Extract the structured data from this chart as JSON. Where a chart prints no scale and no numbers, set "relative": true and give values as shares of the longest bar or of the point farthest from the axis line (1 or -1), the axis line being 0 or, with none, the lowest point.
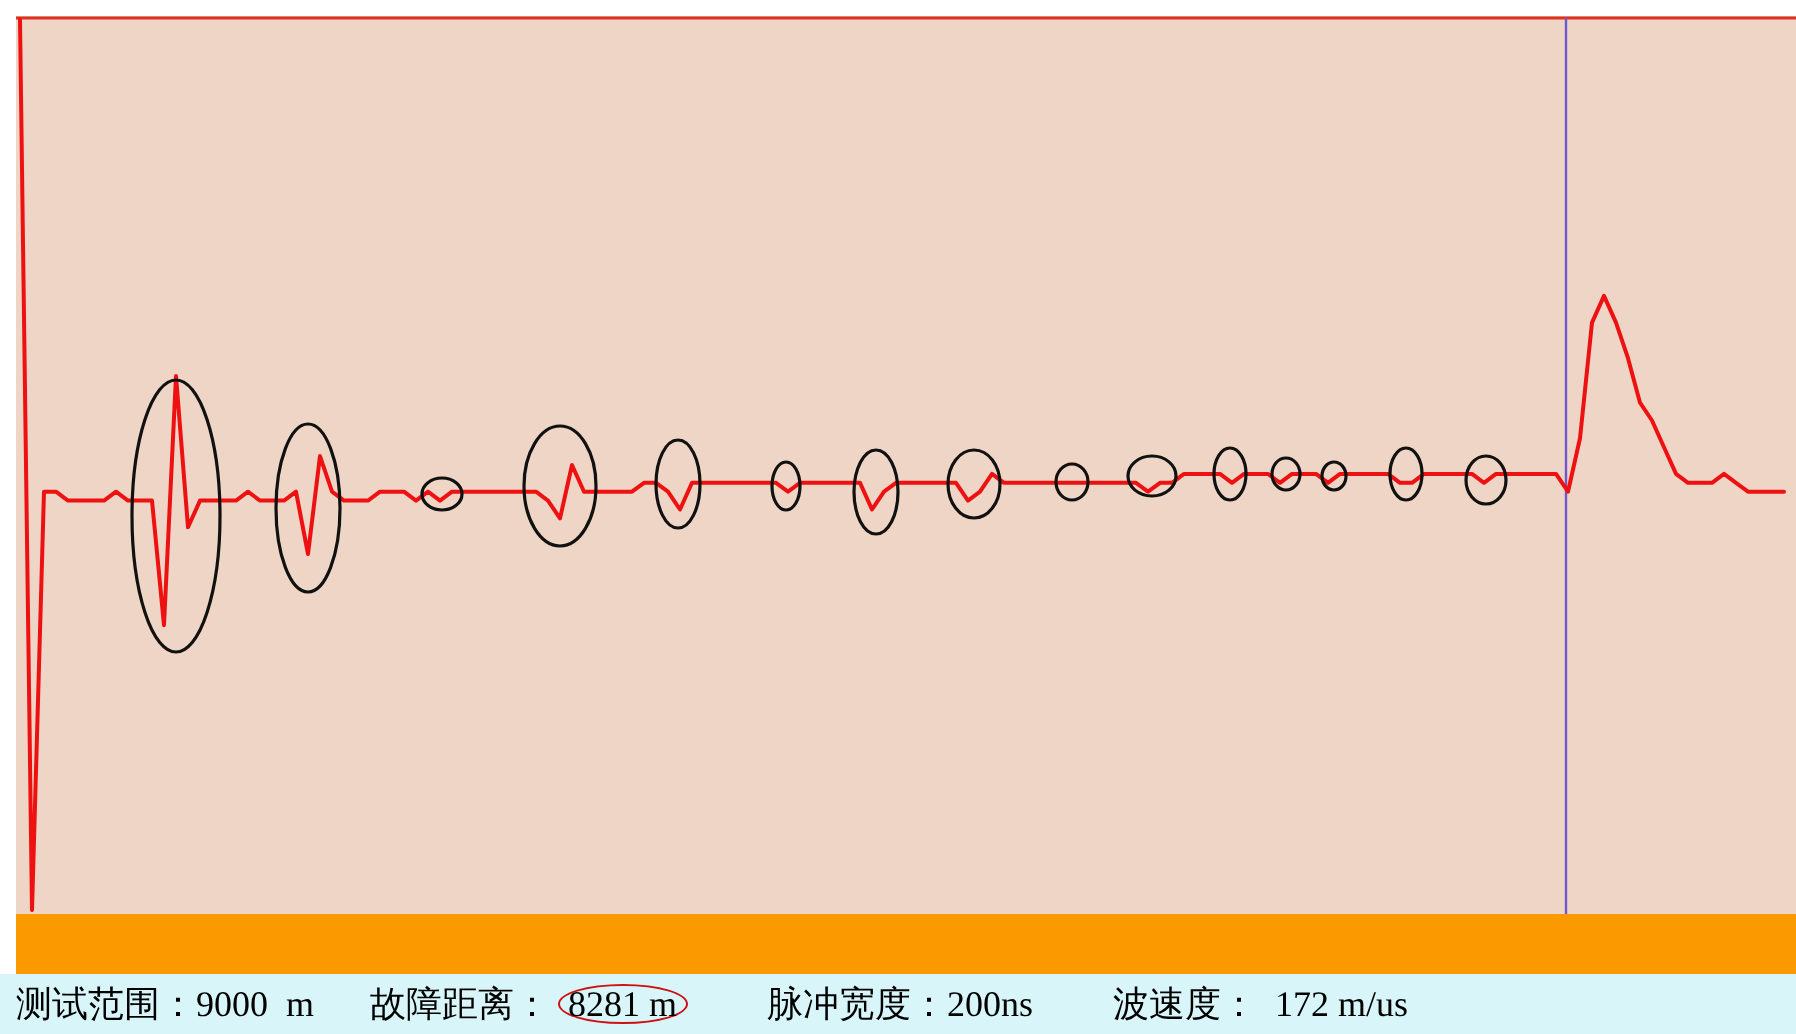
{
  "chart_data": {
    "type": "line",
    "relative": true,
    "categories": [
      null,
      null,
      null,
      null,
      null,
      null,
      null,
      null,
      null,
      null,
      null,
      null,
      null,
      null,
      null,
      null,
      null,
      null,
      null,
      null,
      null,
      null,
      null,
      null,
      null,
      null,
      null,
      null,
      null,
      null,
      null,
      null,
      null,
      null,
      null,
      null,
      null,
      null,
      null,
      null,
      null,
      null,
      null,
      null,
      null,
      null,
      null,
      null,
      null,
      null,
      null,
      null,
      null,
      null,
      null,
      null,
      null,
      null,
      null,
      null,
      null,
      null,
      null,
      null,
      null,
      null,
      null,
      null,
      null,
      null,
      null,
      null,
      null,
      null,
      null,
      null,
      null,
      null,
      null,
      null,
      null,
      null,
      null,
      null,
      null,
      null,
      null,
      null,
      null,
      null,
      null,
      null,
      null,
      null,
      null,
      null,
      null,
      null,
      null,
      null,
      null,
      null,
      null,
      null,
      null,
      null,
      null,
      null,
      null,
      null,
      null,
      null,
      null,
      null,
      null,
      null,
      null,
      null,
      null,
      null,
      null,
      null,
      null,
      null,
      null,
      null,
      null,
      null,
      null,
      null,
      null,
      null,
      null,
      null,
      null,
      null,
      null,
      null,
      null,
      null,
      null,
      null,
      null,
      null,
      null,
      null,
      null,
      null
    ],
    "series": [
      {
        "color": "#ee1111",
        "values": [
          1.0,
          0,
          0.47,
          0.47,
          0.46,
          0.46,
          0.46,
          0.46,
          0.47,
          0.46,
          0.46,
          0.46,
          0.32,
          0.6,
          0.43,
          0.46,
          0.46,
          0.46,
          0.46,
          0.47,
          0.46,
          0.46,
          0.46,
          0.47,
          0.4,
          0.51,
          0.47,
          0.46,
          0.46,
          0.46,
          0.47,
          0.47,
          0.47,
          0.46,
          0.47,
          0.46,
          0.47,
          0.47,
          0.47,
          0.47,
          0.47,
          0.47,
          0.47,
          0.47,
          0.46,
          0.44,
          0.5,
          0.47,
          0.47,
          0.47,
          0.47,
          0.47,
          0.48,
          0.48,
          0.47,
          0.45,
          0.48,
          0.48,
          0.48,
          0.48,
          0.48,
          0.48,
          0.48,
          0.48,
          0.47,
          0.48,
          0.48,
          0.48,
          0.48,
          0.48,
          0.48,
          0.45,
          0.47,
          0.48,
          0.48,
          0.48,
          0.48,
          0.48,
          0.48,
          0.46,
          0.47,
          0.49,
          0.48,
          0.48,
          0.48,
          0.48,
          0.48,
          0.48,
          0.48,
          0.48,
          0.48,
          0.48,
          0.48,
          0.48,
          0.47,
          0.48,
          0.48,
          0.49,
          0.49,
          0.49,
          0.49,
          0.48,
          0.49,
          0.49,
          0.49,
          0.48,
          0.49,
          0.49,
          0.49,
          0.48,
          0.49,
          0.49,
          0.49,
          0.49,
          0.49,
          0.48,
          0.48,
          0.49,
          0.49,
          0.49,
          0.49,
          0.49,
          0.48,
          0.49,
          0.49,
          0.49,
          0.49,
          0.49,
          0.49,
          0.47,
          0.53,
          0.66,
          0.69,
          0.66,
          0.62,
          0.57,
          0.55,
          0.52,
          0.49,
          0.48,
          0.48,
          0.48,
          0.49,
          0.48,
          0.47,
          0.47,
          0.47,
          0.47
        ]
      }
    ],
    "annotations": [
      "测试范围：9000  m",
      "故障距离：",
      "8281 m",
      "脉冲宽度：200ns",
      "波速度：  172 m/us"
    ]
  }
}
